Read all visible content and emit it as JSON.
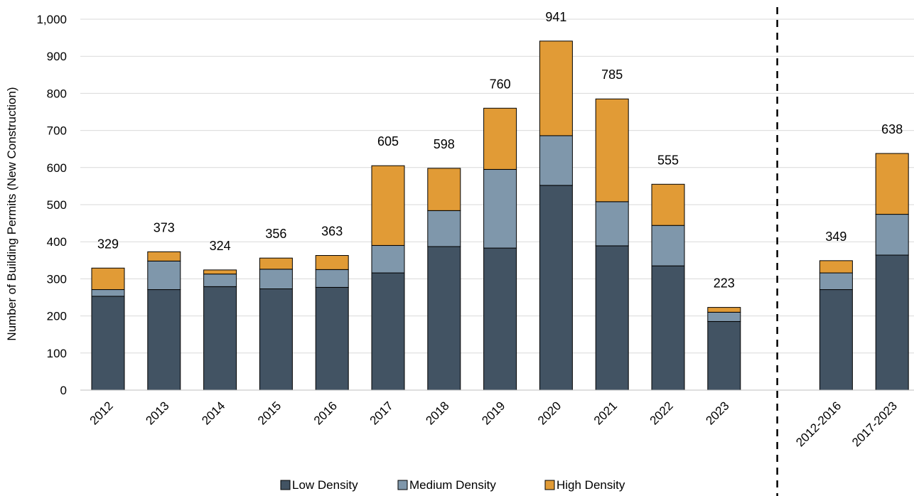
{
  "chart_data": {
    "type": "bar",
    "stacked": true,
    "title": "",
    "xlabel": "",
    "ylabel": "Number of Building Permits (New Construction)",
    "ylim": [
      0,
      1000
    ],
    "yticks": [
      "0",
      "100",
      "200",
      "300",
      "400",
      "500",
      "600",
      "700",
      "800",
      "900",
      "1,000"
    ],
    "grid": true,
    "legend_position": "bottom",
    "categories": [
      "2012",
      "2013",
      "2014",
      "2015",
      "2016",
      "2017",
      "2018",
      "2019",
      "2020",
      "2021",
      "2022",
      "2023",
      "2012-2016",
      "2017-2023"
    ],
    "series": [
      {
        "name": "Low Density",
        "color": "#425363",
        "values": [
          253,
          271,
          279,
          273,
          277,
          316,
          387,
          383,
          552,
          389,
          335,
          185,
          271,
          364
        ]
      },
      {
        "name": "Medium Density",
        "color": "#7f97ab",
        "values": [
          18,
          77,
          34,
          53,
          48,
          74,
          97,
          212,
          134,
          119,
          109,
          25,
          45,
          110
        ]
      },
      {
        "name": "High Density",
        "color": "#e19b36",
        "values": [
          58,
          25,
          11,
          30,
          38,
          215,
          114,
          165,
          255,
          277,
          111,
          13,
          33,
          164
        ]
      }
    ],
    "totals": [
      "329",
      "373",
      "324",
      "356",
      "363",
      "605",
      "598",
      "760",
      "941",
      "785",
      "555",
      "223",
      "349",
      "638"
    ],
    "separator_after": "2023"
  }
}
